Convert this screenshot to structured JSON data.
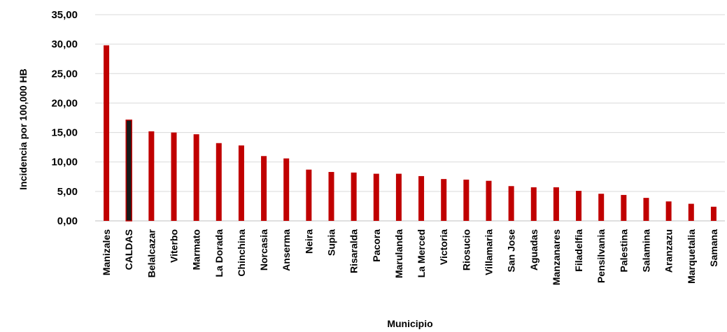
{
  "chart_data": {
    "type": "bar",
    "title": "",
    "xlabel": "Municipio",
    "ylabel": "Incidencia por 100,000 HB",
    "ylim": [
      0,
      35
    ],
    "yticks": [
      "0,00",
      "5,00",
      "10,00",
      "15,00",
      "20,00",
      "25,00",
      "30,00",
      "35,00"
    ],
    "grid": true,
    "legend": "none",
    "categories": [
      "Manizales",
      "CALDAS",
      "Belalcazar",
      "Viterbo",
      "Marmato",
      "La Dorada",
      "Chinchina",
      "Norcasia",
      "Anserma",
      "Neira",
      "Supia",
      "Risaralda",
      "Pacora",
      "Marulanda",
      "La Merced",
      "Victoria",
      "Riosucio",
      "Villamaria",
      "San Jose",
      "Aguadas",
      "Manzanares",
      "Filadelfia",
      "Pensilvania",
      "Palestina",
      "Salamina",
      "Aranzazu",
      "Marquetalia",
      "Samana"
    ],
    "values": [
      29.8,
      17.1,
      15.2,
      15.0,
      14.7,
      13.2,
      12.8,
      11.0,
      10.6,
      8.7,
      8.3,
      8.2,
      8.0,
      8.0,
      7.6,
      7.1,
      7.0,
      6.8,
      5.9,
      5.7,
      5.7,
      5.1,
      4.6,
      4.4,
      3.9,
      3.3,
      2.9,
      2.4
    ],
    "highlight": {
      "index": 1,
      "color": "#1a1a1a",
      "outline": "#c00000"
    },
    "colors": {
      "bar": "#c00000",
      "grid": "#d9d9d9"
    }
  }
}
